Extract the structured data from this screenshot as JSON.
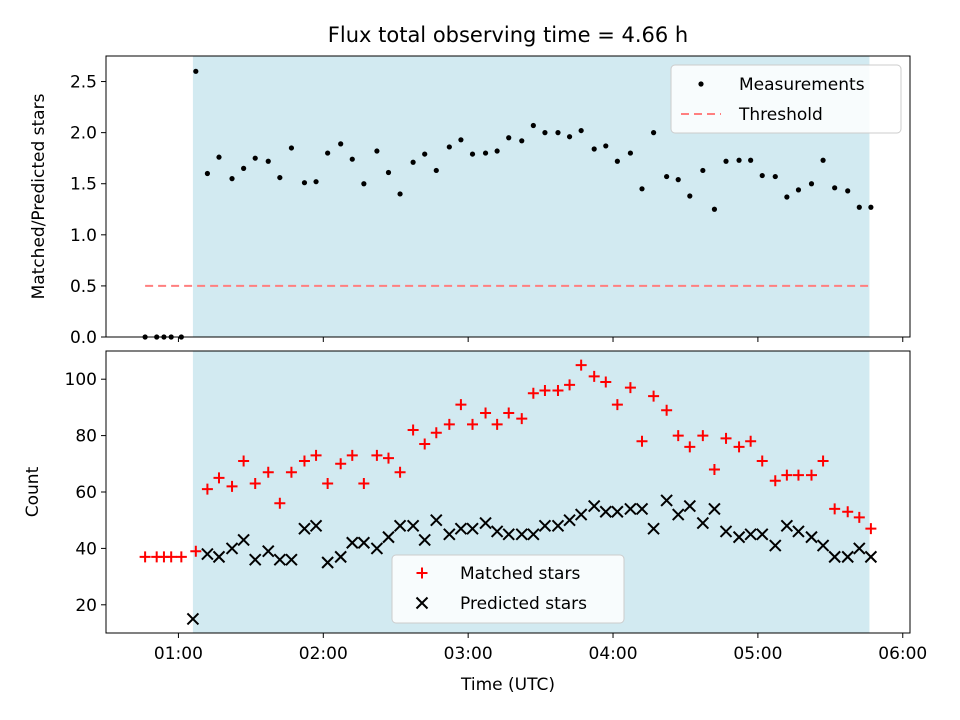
{
  "chart_data": [
    {
      "type": "scatter",
      "title": "Flux total observing time = 4.66 h",
      "xlabel": "",
      "ylabel": "Matched/Predicted stars",
      "x_unit": "hours (UTC)",
      "xlim": [
        0.5,
        6.05
      ],
      "ylim": [
        0.0,
        2.75
      ],
      "yticks": [
        0.0,
        0.5,
        1.0,
        1.5,
        2.0,
        2.5
      ],
      "ytick_labels": [
        "0.0",
        "0.5",
        "1.0",
        "1.5",
        "2.0",
        "2.5"
      ],
      "shaded_span": {
        "from": 1.1,
        "to": 5.77,
        "color": "#add8e6"
      },
      "threshold": {
        "name": "Threshold",
        "value": 0.5,
        "from": 0.77,
        "to": 5.77,
        "color": "#ff7f7f"
      },
      "legend_position": "top-right",
      "series": [
        {
          "name": "Measurements",
          "color": "#000000",
          "marker": "dot",
          "x": [
            0.77,
            0.85,
            0.9,
            0.95,
            1.02,
            1.12,
            1.2,
            1.28,
            1.37,
            1.45,
            1.53,
            1.62,
            1.7,
            1.78,
            1.87,
            1.95,
            2.03,
            2.12,
            2.2,
            2.28,
            2.37,
            2.45,
            2.53,
            2.62,
            2.7,
            2.78,
            2.87,
            2.95,
            3.03,
            3.12,
            3.2,
            3.28,
            3.37,
            3.45,
            3.53,
            3.62,
            3.7,
            3.78,
            3.87,
            3.95,
            4.03,
            4.12,
            4.2,
            4.28,
            4.37,
            4.45,
            4.53,
            4.62,
            4.7,
            4.78,
            4.87,
            4.95,
            5.03,
            5.12,
            5.2,
            5.28,
            5.37,
            5.45,
            5.53,
            5.62,
            5.7,
            5.78
          ],
          "y": [
            0.0,
            0.0,
            0.0,
            0.0,
            0.0,
            2.6,
            1.6,
            1.76,
            1.55,
            1.65,
            1.75,
            1.72,
            1.56,
            1.85,
            1.51,
            1.52,
            1.8,
            1.89,
            1.74,
            1.5,
            1.82,
            1.61,
            1.4,
            1.71,
            1.79,
            1.63,
            1.86,
            1.93,
            1.79,
            1.8,
            1.82,
            1.95,
            1.92,
            2.07,
            2.0,
            2.0,
            1.96,
            2.02,
            1.84,
            1.87,
            1.72,
            1.8,
            1.45,
            2.0,
            1.57,
            1.54,
            1.38,
            1.63,
            1.25,
            1.72,
            1.73,
            1.73,
            1.58,
            1.57,
            1.37,
            1.44,
            1.5,
            1.73,
            1.46,
            1.43,
            1.27,
            1.27
          ]
        }
      ]
    },
    {
      "type": "scatter",
      "title": "",
      "xlabel": "Time (UTC)",
      "ylabel": "Count",
      "x_unit": "hours (UTC)",
      "xlim": [
        0.5,
        6.05
      ],
      "ylim": [
        10,
        110
      ],
      "yticks": [
        20,
        40,
        60,
        80,
        100
      ],
      "ytick_labels": [
        "20",
        "40",
        "60",
        "80",
        "100"
      ],
      "xticks": [
        1,
        2,
        3,
        4,
        5,
        6
      ],
      "xtick_labels": [
        "01:00",
        "02:00",
        "03:00",
        "04:00",
        "05:00",
        "06:00"
      ],
      "shaded_span": {
        "from": 1.1,
        "to": 5.77,
        "color": "#add8e6"
      },
      "legend_position": "lower-center",
      "series": [
        {
          "name": "Matched stars",
          "color": "#ff0000",
          "marker": "plus",
          "x": [
            0.77,
            0.85,
            0.9,
            0.95,
            1.02,
            1.12,
            1.2,
            1.28,
            1.37,
            1.45,
            1.53,
            1.62,
            1.7,
            1.78,
            1.87,
            1.95,
            2.03,
            2.12,
            2.2,
            2.28,
            2.37,
            2.45,
            2.53,
            2.62,
            2.7,
            2.78,
            2.87,
            2.95,
            3.03,
            3.12,
            3.2,
            3.28,
            3.37,
            3.45,
            3.53,
            3.62,
            3.7,
            3.78,
            3.87,
            3.95,
            4.03,
            4.12,
            4.2,
            4.28,
            4.37,
            4.45,
            4.53,
            4.62,
            4.7,
            4.78,
            4.87,
            4.95,
            5.03,
            5.12,
            5.2,
            5.28,
            5.37,
            5.45,
            5.53,
            5.62,
            5.7,
            5.78
          ],
          "y": [
            37,
            37,
            37,
            37,
            37,
            39,
            61,
            65,
            62,
            71,
            63,
            67,
            56,
            67,
            71,
            73,
            63,
            70,
            73,
            63,
            73,
            72,
            67,
            82,
            77,
            81,
            84,
            91,
            84,
            88,
            84,
            88,
            86,
            95,
            96,
            96,
            98,
            105,
            101,
            99,
            91,
            97,
            78,
            94,
            89,
            80,
            76,
            80,
            68,
            79,
            76,
            78,
            71,
            64,
            66,
            66,
            66,
            71,
            54,
            53,
            51,
            47
          ]
        },
        {
          "name": "Predicted stars",
          "color": "#000000",
          "marker": "x",
          "x": [
            1.1,
            1.2,
            1.28,
            1.37,
            1.45,
            1.53,
            1.62,
            1.7,
            1.78,
            1.87,
            1.95,
            2.03,
            2.12,
            2.2,
            2.28,
            2.37,
            2.45,
            2.53,
            2.62,
            2.7,
            2.78,
            2.87,
            2.95,
            3.03,
            3.12,
            3.2,
            3.28,
            3.37,
            3.45,
            3.53,
            3.62,
            3.7,
            3.78,
            3.87,
            3.95,
            4.03,
            4.12,
            4.2,
            4.28,
            4.37,
            4.45,
            4.53,
            4.62,
            4.7,
            4.78,
            4.87,
            4.95,
            5.03,
            5.12,
            5.2,
            5.28,
            5.37,
            5.45,
            5.53,
            5.62,
            5.7,
            5.78
          ],
          "y": [
            15,
            38,
            37,
            40,
            43,
            36,
            39,
            36,
            36,
            47,
            48,
            35,
            37,
            42,
            42,
            40,
            44,
            48,
            48,
            43,
            50,
            45,
            47,
            47,
            49,
            46,
            45,
            45,
            45,
            48,
            48,
            50,
            52,
            55,
            53,
            53,
            54,
            54,
            47,
            57,
            52,
            55,
            49,
            54,
            46,
            44,
            45,
            45,
            41,
            48,
            46,
            44,
            41,
            37,
            37,
            40,
            37
          ]
        }
      ]
    }
  ]
}
